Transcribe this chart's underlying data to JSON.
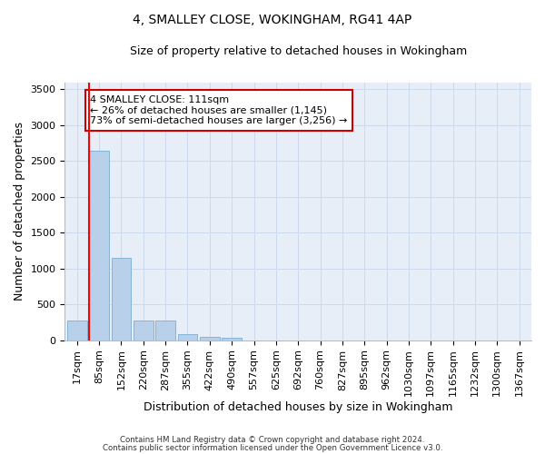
{
  "title": "4, SMALLEY CLOSE, WOKINGHAM, RG41 4AP",
  "subtitle": "Size of property relative to detached houses in Wokingham",
  "xlabel": "Distribution of detached houses by size in Wokingham",
  "ylabel": "Number of detached properties",
  "footnote1": "Contains HM Land Registry data © Crown copyright and database right 2024.",
  "footnote2": "Contains public sector information licensed under the Open Government Licence v3.0.",
  "bar_labels": [
    "17sqm",
    "85sqm",
    "152sqm",
    "220sqm",
    "287sqm",
    "355sqm",
    "422sqm",
    "490sqm",
    "557sqm",
    "625sqm",
    "692sqm",
    "760sqm",
    "827sqm",
    "895sqm",
    "962sqm",
    "1030sqm",
    "1097sqm",
    "1165sqm",
    "1232sqm",
    "1300sqm",
    "1367sqm"
  ],
  "bar_values": [
    270,
    2640,
    1145,
    280,
    280,
    90,
    50,
    35,
    0,
    0,
    0,
    0,
    0,
    0,
    0,
    0,
    0,
    0,
    0,
    0,
    0
  ],
  "bar_color": "#b8d0ea",
  "bar_edgecolor": "#7aaed4",
  "ylim": [
    0,
    3600
  ],
  "yticks": [
    0,
    500,
    1000,
    1500,
    2000,
    2500,
    3000,
    3500
  ],
  "property_label": "4 SMALLEY CLOSE: 111sqm",
  "annotation_line1": "← 26% of detached houses are smaller (1,145)",
  "annotation_line2": "73% of semi-detached houses are larger (3,256) →",
  "annotation_box_color": "#ffffff",
  "annotation_box_edgecolor": "#cc0000",
  "red_line_bar_index": 1,
  "grid_color": "#ccd8ec",
  "background_color": "#e8eef8",
  "title_fontsize": 10,
  "subtitle_fontsize": 9,
  "ylabel_fontsize": 9,
  "xlabel_fontsize": 9,
  "tick_fontsize": 8,
  "annot_fontsize": 8
}
